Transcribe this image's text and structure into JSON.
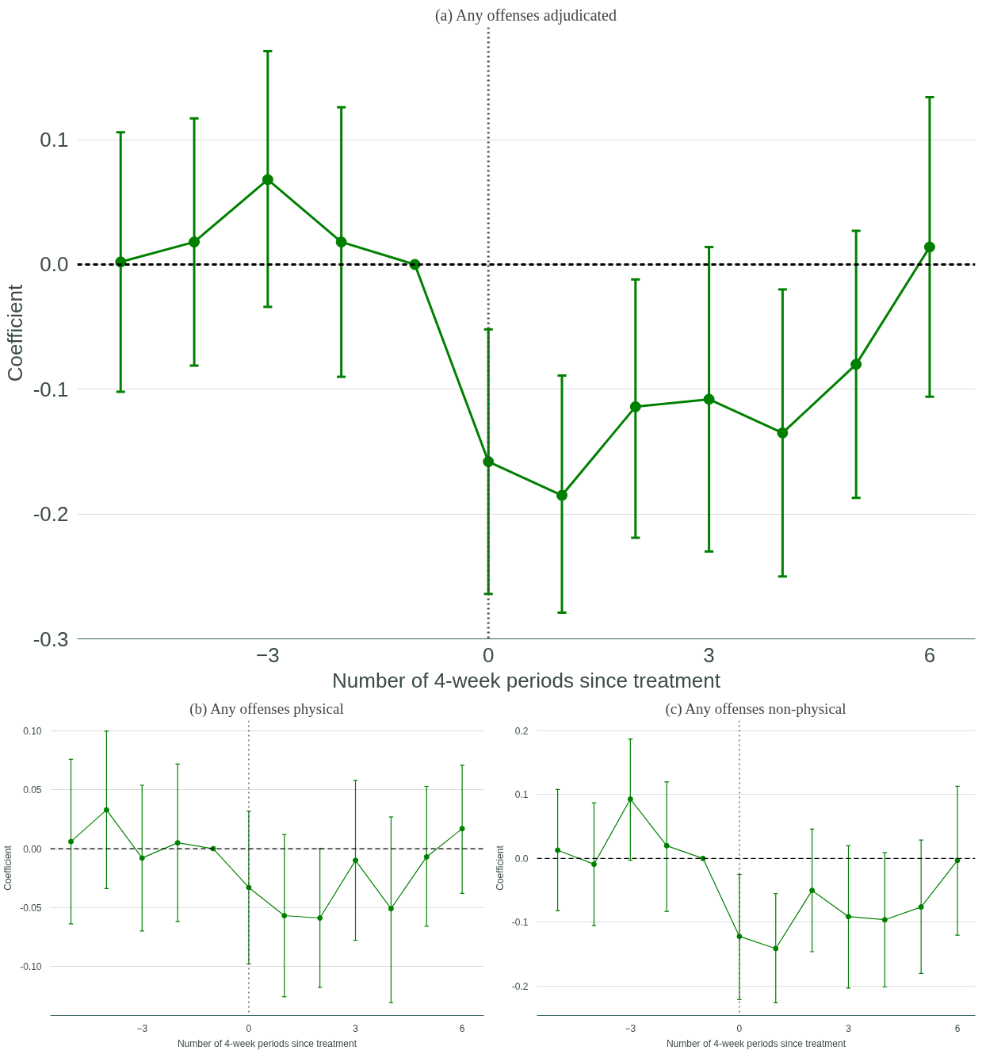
{
  "chart_data": [
    {
      "type": "line",
      "title": "(a) Any offenses adjudicated",
      "xlabel": "Number of 4-week periods since treatment",
      "ylabel": "Coefficient",
      "x": [
        -5,
        -4,
        -3,
        -2,
        -1,
        0,
        1,
        2,
        3,
        4,
        5,
        6
      ],
      "series": [
        {
          "color": "#008000",
          "values": [
            0.002,
            0.018,
            0.068,
            0.018,
            0,
            -0.158,
            -0.185,
            -0.114,
            -0.108,
            -0.135,
            -0.08,
            0.014
          ],
          "errors": [
            [
              -0.102,
              0.106
            ],
            [
              -0.081,
              0.117
            ],
            [
              -0.034,
              0.171
            ],
            [
              -0.09,
              0.126
            ],
            null,
            [
              -0.264,
              -0.052
            ],
            [
              -0.279,
              -0.089
            ],
            [
              -0.219,
              -0.012
            ],
            [
              -0.23,
              0.014
            ],
            [
              -0.25,
              -0.02
            ],
            [
              -0.187,
              0.027
            ],
            [
              -0.106,
              0.134
            ]
          ]
        }
      ],
      "xlim": [
        -5.59,
        6.62
      ],
      "ylim": [
        -0.3,
        0.19
      ],
      "xticks": [
        -3,
        0,
        3,
        6
      ],
      "yticks": [
        {
          "value": 0.1,
          "label": "0.1"
        },
        {
          "value": 0,
          "label": "0.0"
        },
        {
          "value": -0.1,
          "label": "-0.1"
        },
        {
          "value": -0.2,
          "label": "-0.2"
        },
        {
          "value": -0.3,
          "label": "-0.3"
        }
      ],
      "grid": "y",
      "marker": "circle",
      "line_style": "solid",
      "ref_lines": [
        {
          "axis": "y",
          "value": 0,
          "color": "#000000",
          "line_style": "dashed"
        },
        {
          "axis": "x",
          "value": 0,
          "color": "#444444",
          "line_style": "dotted"
        }
      ]
    },
    {
      "type": "line",
      "title": "(b) Any offenses physical",
      "xlabel": "Number of 4-week periods since treatment",
      "ylabel": "Coefficient",
      "x": [
        -5,
        -4,
        -3,
        -2,
        -1,
        0,
        1,
        2,
        3,
        4,
        5,
        6
      ],
      "series": [
        {
          "color": "#008000",
          "values": [
            0.006,
            0.033,
            -0.008,
            0.005,
            0,
            -0.033,
            -0.057,
            -0.059,
            -0.01,
            -0.051,
            -0.007,
            0.017
          ],
          "errors": [
            [
              -0.064,
              0.076
            ],
            [
              -0.034,
              0.1
            ],
            [
              -0.07,
              0.054
            ],
            [
              -0.062,
              0.072
            ],
            null,
            [
              -0.098,
              0.032
            ],
            [
              -0.126,
              0.012
            ],
            [
              -0.118,
              0.0
            ],
            [
              -0.078,
              0.058
            ],
            [
              -0.131,
              0.027
            ],
            [
              -0.066,
              0.053
            ],
            [
              -0.038,
              0.071
            ]
          ]
        }
      ],
      "xlim": [
        -5.58,
        6.61
      ],
      "ylim": [
        -0.142,
        0.109
      ],
      "xticks": [
        -3,
        0,
        3,
        6
      ],
      "yticks": [
        {
          "value": 0.1,
          "label": "0.10"
        },
        {
          "value": 0.05,
          "label": "0.05"
        },
        {
          "value": 0,
          "label": "0.00"
        },
        {
          "value": -0.05,
          "label": "-0.05"
        },
        {
          "value": -0.1,
          "label": "-0.10"
        }
      ],
      "grid": "y",
      "marker": "circle",
      "line_style": "solid",
      "ref_lines": [
        {
          "axis": "y",
          "value": 0,
          "color": "#000000",
          "line_style": "dashed"
        },
        {
          "axis": "x",
          "value": 0,
          "color": "#444444",
          "line_style": "dotted"
        }
      ]
    },
    {
      "type": "line",
      "title": "(c) Any offenses non-physical",
      "xlabel": "Number of 4-week periods since treatment",
      "ylabel": "Coefficient",
      "x": [
        -5,
        -4,
        -3,
        -2,
        -1,
        0,
        1,
        2,
        3,
        4,
        5,
        6
      ],
      "series": [
        {
          "color": "#008000",
          "values": [
            0.013,
            -0.009,
            0.093,
            0.02,
            0,
            -0.122,
            -0.141,
            -0.05,
            -0.091,
            -0.096,
            -0.076,
            -0.003
          ],
          "errors": [
            [
              -0.082,
              0.108
            ],
            [
              -0.105,
              0.087
            ],
            [
              -0.003,
              0.187
            ],
            [
              -0.083,
              0.12
            ],
            null,
            [
              -0.221,
              -0.025
            ],
            [
              -0.226,
              -0.055
            ],
            [
              -0.146,
              0.046
            ],
            [
              -0.203,
              0.02
            ],
            [
              -0.201,
              0.009
            ],
            [
              -0.18,
              0.029
            ],
            [
              -0.12,
              0.113
            ]
          ]
        }
      ],
      "xlim": [
        -5.57,
        6.49
      ],
      "ylim": [
        -0.246,
        0.216
      ],
      "xticks": [
        -3,
        0,
        3,
        6
      ],
      "yticks": [
        {
          "value": 0.2,
          "label": "0.2"
        },
        {
          "value": 0.1,
          "label": "0.1"
        },
        {
          "value": 0,
          "label": "0.0"
        },
        {
          "value": -0.1,
          "label": "-0.1"
        },
        {
          "value": -0.2,
          "label": "-0.2"
        }
      ],
      "grid": "y",
      "marker": "circle",
      "line_style": "solid",
      "ref_lines": [
        {
          "axis": "y",
          "value": 0,
          "color": "#000000",
          "line_style": "dashed"
        },
        {
          "axis": "x",
          "value": 0,
          "color": "#444444",
          "line_style": "dotted"
        }
      ]
    }
  ]
}
